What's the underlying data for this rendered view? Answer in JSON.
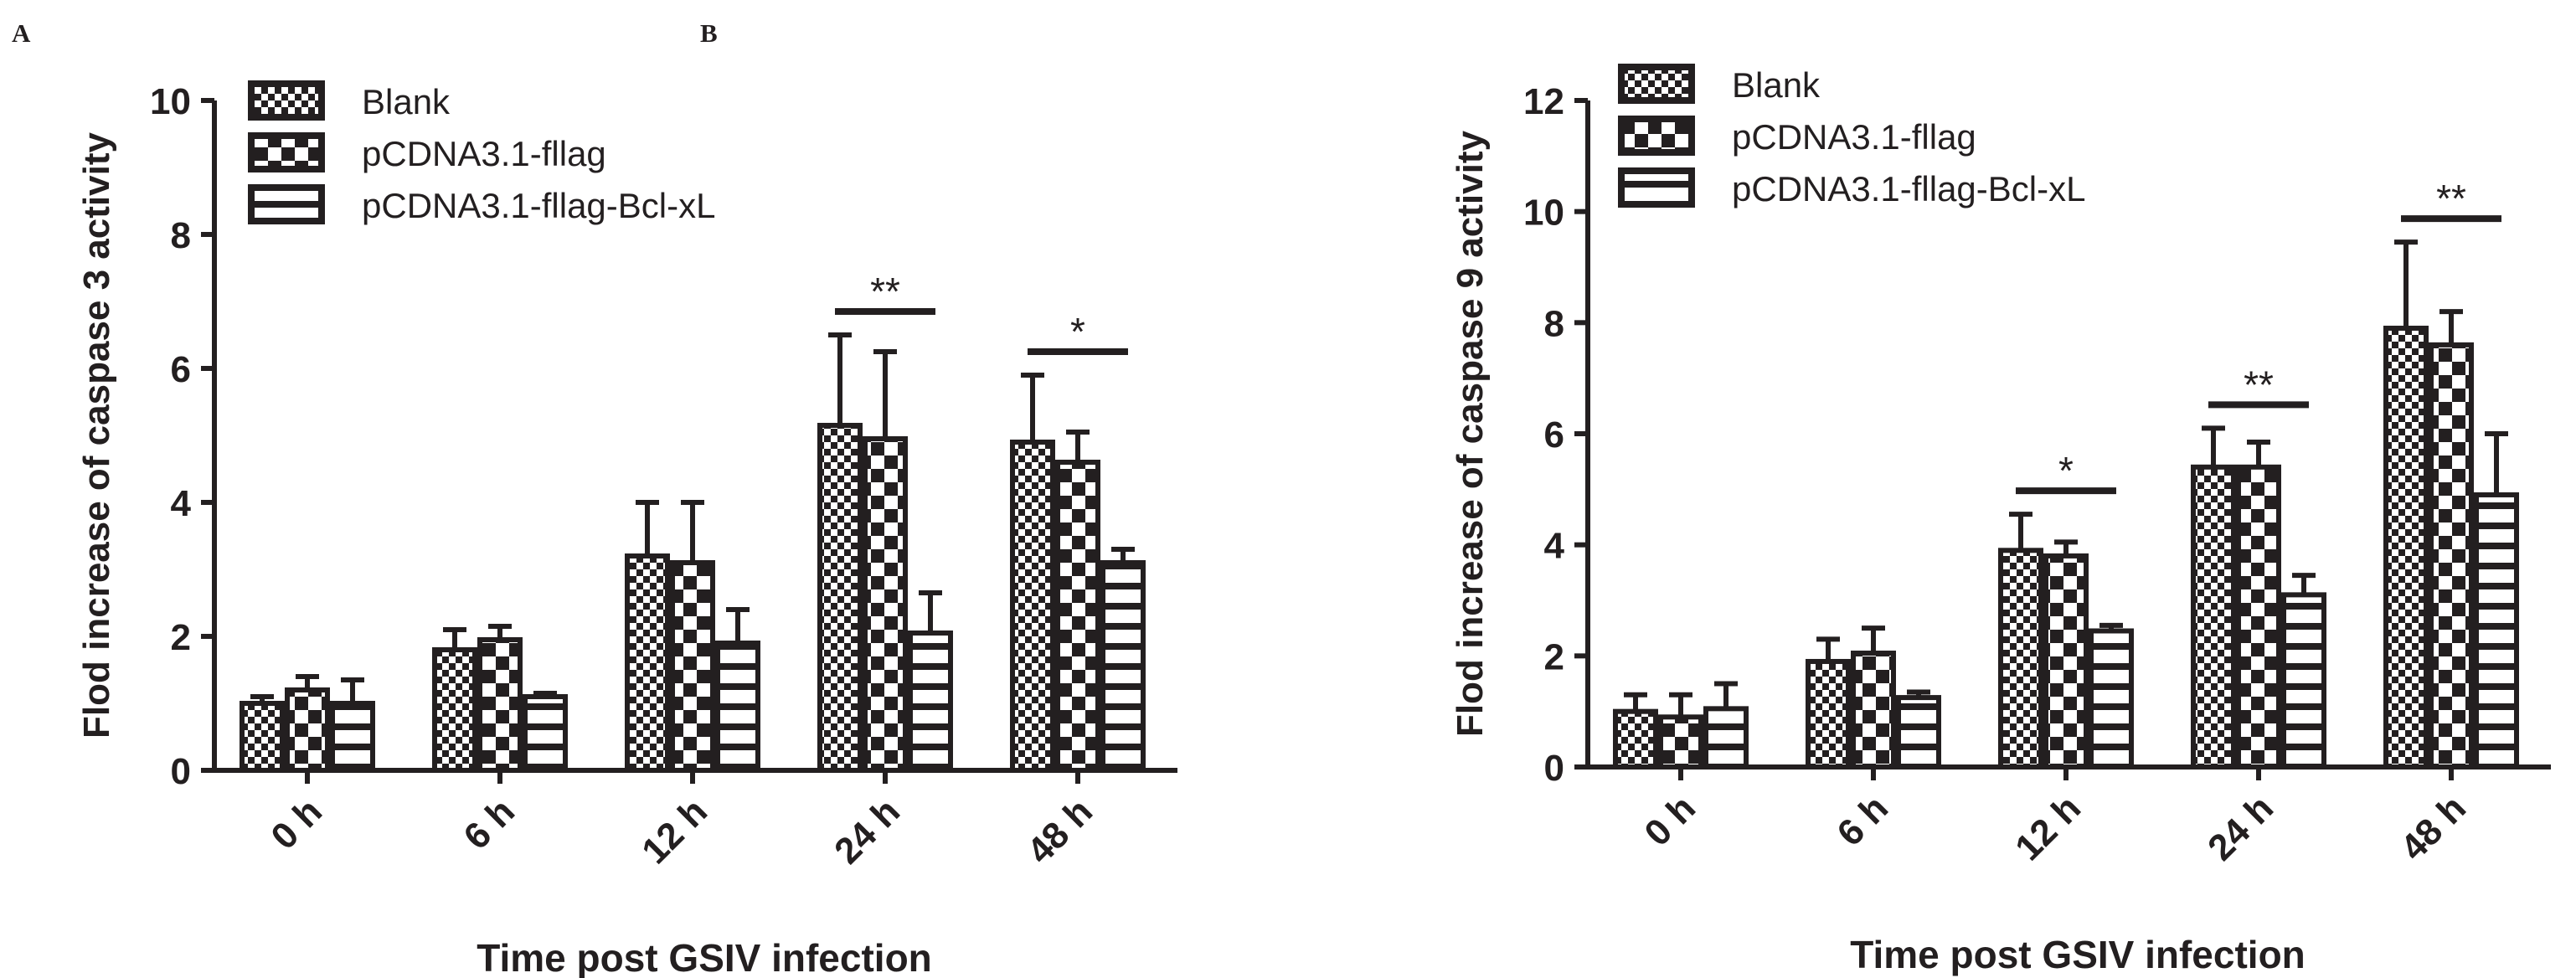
{
  "chart_data": [
    {
      "type": "bar",
      "panel_label": "A",
      "title": "",
      "xlabel": "Time post GSIV infection",
      "ylabel": "Flod increase of caspase 3 activity",
      "ylim": [
        0,
        10
      ],
      "yticks": [
        "0",
        "2",
        "4",
        "6",
        "8",
        "10"
      ],
      "grid": false,
      "legend_position": "top-left",
      "categories": [
        "0 h",
        "6 h",
        "12 h",
        "24 h",
        "48 h"
      ],
      "series": [
        {
          "name": "Blank",
          "pattern": "checker",
          "values": [
            1.0,
            1.8,
            3.2,
            5.15,
            4.9
          ],
          "errors": [
            0.1,
            0.3,
            0.8,
            1.35,
            1.0
          ]
        },
        {
          "name": "pCDNA3.1-fllag",
          "pattern": "coarse-checker",
          "values": [
            1.2,
            1.95,
            3.1,
            4.95,
            4.6
          ],
          "errors": [
            0.2,
            0.2,
            0.9,
            1.3,
            0.45
          ]
        },
        {
          "name": "pCDNA3.1-fllag-Bcl-xL",
          "pattern": "hstripes",
          "values": [
            1.0,
            1.1,
            1.9,
            2.05,
            3.1
          ],
          "errors": [
            0.35,
            0.05,
            0.5,
            0.6,
            0.2
          ]
        }
      ],
      "significance": [
        {
          "category": "24 h",
          "label": "**"
        },
        {
          "category": "48 h",
          "label": "*"
        }
      ]
    },
    {
      "type": "bar",
      "panel_label": "B",
      "title": "",
      "xlabel": "Time post GSIV infection",
      "ylabel": "Flod increase of caspase 9 activity",
      "ylim": [
        0,
        12
      ],
      "yticks": [
        "0",
        "2",
        "4",
        "6",
        "8",
        "10",
        "12"
      ],
      "grid": false,
      "legend_position": "top-left",
      "categories": [
        "0 h",
        "6 h",
        "12 h",
        "24 h",
        "48 h"
      ],
      "series": [
        {
          "name": "Blank",
          "pattern": "checker",
          "values": [
            1.0,
            1.9,
            3.9,
            5.4,
            7.9
          ],
          "errors": [
            0.3,
            0.4,
            0.65,
            0.7,
            1.55
          ]
        },
        {
          "name": "pCDNA3.1-fllag",
          "pattern": "coarse-checker",
          "values": [
            0.9,
            2.05,
            3.8,
            5.4,
            7.6
          ],
          "errors": [
            0.4,
            0.45,
            0.25,
            0.45,
            0.6
          ]
        },
        {
          "name": "pCDNA3.1-fllag-Bcl-xL",
          "pattern": "hstripes",
          "values": [
            1.05,
            1.25,
            2.45,
            3.1,
            4.9
          ],
          "errors": [
            0.45,
            0.1,
            0.1,
            0.35,
            1.1
          ]
        }
      ],
      "significance": [
        {
          "category": "12 h",
          "label": "*"
        },
        {
          "category": "24 h",
          "label": "**"
        },
        {
          "category": "48 h",
          "label": "**"
        }
      ]
    }
  ],
  "colors": {
    "ink": "#231f20",
    "background": "#ffffff"
  }
}
